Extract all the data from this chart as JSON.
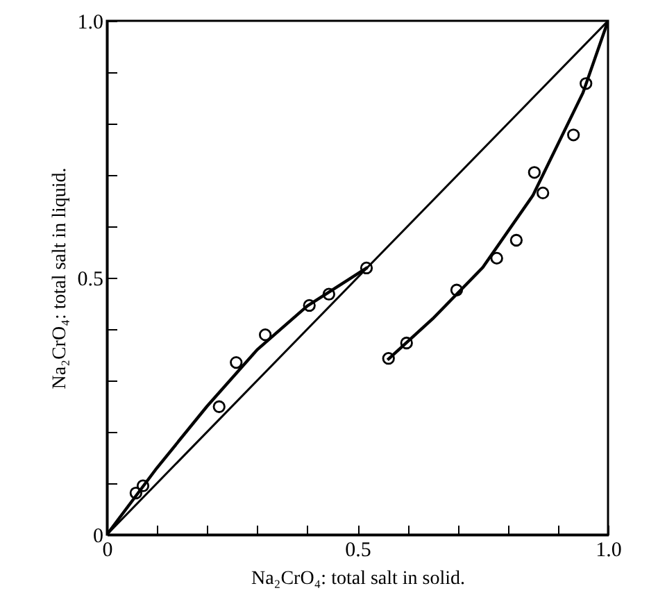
{
  "chart_data": {
    "type": "scatter",
    "xlabel": "Na₂CrO₄: total salt in solid.",
    "ylabel": "Na₂CrO₄: total salt in liquid.",
    "xlim": [
      0,
      1
    ],
    "ylim": [
      0,
      1
    ],
    "xticks": [
      0,
      {
        "value": 0.1,
        "label": null
      },
      {
        "value": 0.2,
        "label": null
      },
      {
        "value": 0.3,
        "label": null
      },
      {
        "value": 0.4,
        "label": null
      },
      0.5,
      {
        "value": 0.6,
        "label": null
      },
      {
        "value": 0.7,
        "label": null
      },
      {
        "value": 0.8,
        "label": null
      },
      {
        "value": 0.9,
        "label": null
      },
      {
        "value": 1,
        "label": "1.0"
      }
    ],
    "yticks": [
      0,
      {
        "value": 0.1,
        "label": null
      },
      {
        "value": 0.2,
        "label": null
      },
      {
        "value": 0.3,
        "label": null
      },
      {
        "value": 0.4,
        "label": null
      },
      0.5,
      {
        "value": 0.6,
        "label": null
      },
      {
        "value": 0.7,
        "label": null
      },
      {
        "value": 0.8,
        "label": null
      },
      {
        "value": 0.9,
        "label": null
      },
      {
        "value": 1,
        "label": "1.0"
      }
    ],
    "series": [
      {
        "type": "line",
        "marker": "none",
        "color": "#000000",
        "x": [
          0,
          1
        ],
        "values": [
          0,
          1
        ]
      },
      {
        "type": "line",
        "marker": "none",
        "color": "#000000",
        "x": [
          0,
          0.1,
          0.2,
          0.3,
          0.4,
          0.52
        ],
        "values": [
          0,
          0.13,
          0.25,
          0.36,
          0.445,
          0.52
        ]
      },
      {
        "type": "line",
        "marker": "none",
        "color": "#000000",
        "x": [
          0.56,
          0.65,
          0.75,
          0.85,
          0.95,
          1
        ],
        "values": [
          0.34,
          0.42,
          0.52,
          0.66,
          0.86,
          1
        ]
      },
      {
        "marker": "circle",
        "color": "#000000",
        "x": [
          0.058,
          0.072,
          0.224,
          0.258,
          0.316,
          0.404,
          0.443,
          0.518
        ],
        "values": [
          0.081,
          0.095,
          0.249,
          0.335,
          0.389,
          0.446,
          0.468,
          0.519
        ]
      },
      {
        "marker": "circle",
        "color": "#000000",
        "x": [
          0.562,
          0.598,
          0.698,
          0.778,
          0.817,
          0.853,
          0.87,
          0.931,
          0.956
        ],
        "values": [
          0.343,
          0.373,
          0.476,
          0.538,
          0.573,
          0.705,
          0.665,
          0.778,
          0.878
        ]
      }
    ]
  }
}
